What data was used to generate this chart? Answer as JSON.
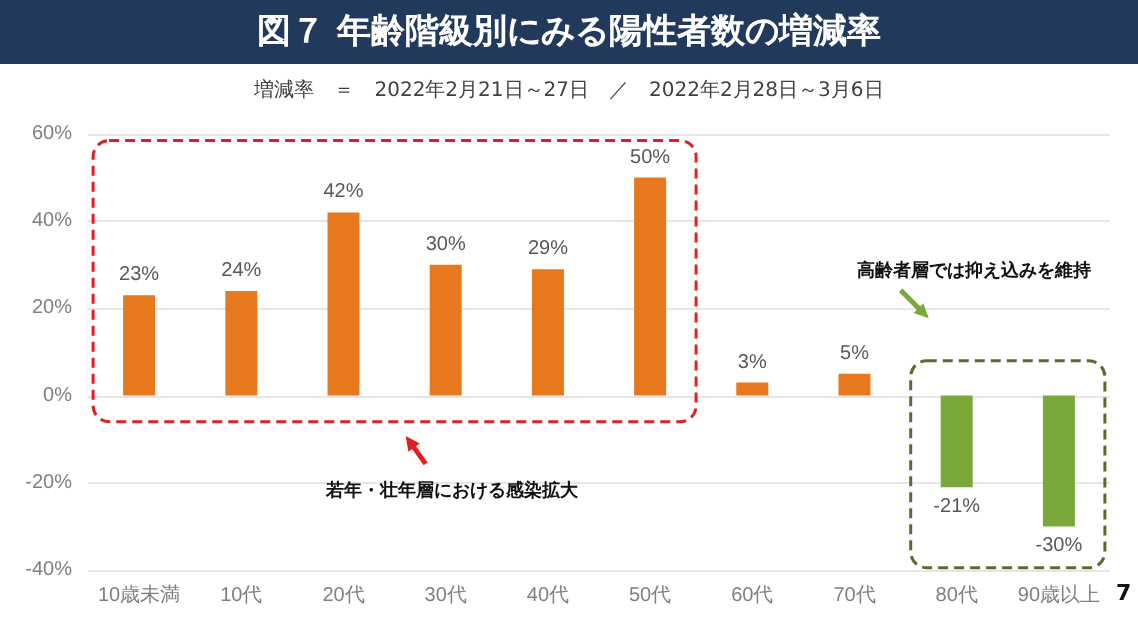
{
  "chart_data": {
    "type": "bar",
    "title": "図７ 年齢階級別にみる陽性者数の増減率",
    "subtitle": "増減率　＝　2022年2月21日～27日　／　2022年2月28日～3月6日",
    "categories": [
      "10歳未満",
      "10代",
      "20代",
      "30代",
      "40代",
      "50代",
      "60代",
      "70代",
      "80代",
      "90歳以上"
    ],
    "values": [
      23,
      24,
      42,
      30,
      29,
      50,
      3,
      5,
      -21,
      -30
    ],
    "colors": [
      "#e8781e",
      "#e8781e",
      "#e8781e",
      "#e8781e",
      "#e8781e",
      "#e8781e",
      "#e8781e",
      "#e8781e",
      "#7ba83a",
      "#7ba83a"
    ],
    "value_labels": [
      "23%",
      "24%",
      "42%",
      "30%",
      "29%",
      "50%",
      "3%",
      "5%",
      "-21%",
      "-30%"
    ],
    "ylim": [
      -40,
      60
    ],
    "yticks": [
      {
        "value": -40,
        "label": "-40%"
      },
      {
        "value": -20,
        "label": "-20%"
      },
      {
        "value": 0,
        "label": "0%"
      },
      {
        "value": 20,
        "label": "20%"
      },
      {
        "value": 40,
        "label": "40%"
      },
      {
        "value": 60,
        "label": "60%"
      }
    ],
    "grid": "y",
    "annotations": [
      "若年・壮年層における感染拡大",
      "高齢者層では抑え込みを維持",
      "7"
    ]
  }
}
